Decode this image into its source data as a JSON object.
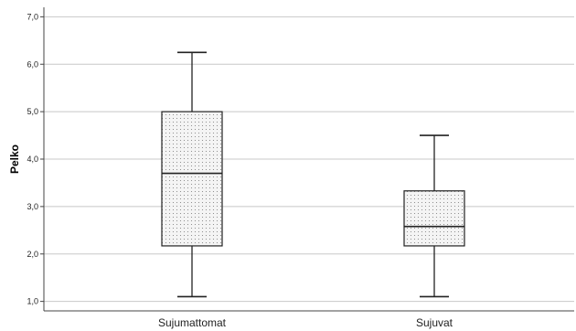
{
  "chart_data": {
    "type": "boxplot",
    "ylabel": "Pelko",
    "xlabel": "",
    "ylim": [
      0.8,
      7.2
    ],
    "yticks": [
      1.0,
      2.0,
      3.0,
      4.0,
      5.0,
      6.0,
      7.0
    ],
    "ytick_labels": [
      "1,0",
      "2,0",
      "3,0",
      "4,0",
      "5,0",
      "6,0",
      "7,0"
    ],
    "grid": true,
    "categories": [
      "Sujumattomat",
      "Sujuvat"
    ],
    "boxes": [
      {
        "category": "Sujumattomat",
        "min": 1.1,
        "q1": 2.17,
        "median": 3.7,
        "q3": 5.0,
        "max": 6.25
      },
      {
        "category": "Sujuvat",
        "min": 1.1,
        "q1": 2.17,
        "median": 2.58,
        "q3": 3.33,
        "max": 4.5
      }
    ],
    "colors": {
      "grid": "#c8c8c8",
      "axis": "#444444",
      "box_stroke": "#222222",
      "box_fill": "#f4f4f4",
      "dots": "#777777"
    }
  }
}
